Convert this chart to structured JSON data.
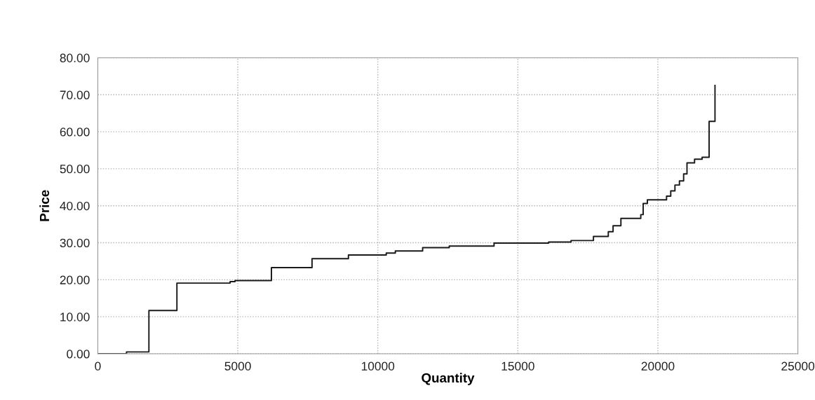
{
  "chart_data": {
    "type": "step",
    "xlabel": "Quantity",
    "ylabel": "Price",
    "x": [
      0,
      1025,
      1825,
      2825,
      4725,
      4900,
      6200,
      7650,
      8950,
      10300,
      10625,
      11600,
      12550,
      14150,
      16100,
      16900,
      17700,
      18230,
      18400,
      18680,
      19390,
      19475,
      19625,
      20310,
      20460,
      20610,
      20770,
      20920,
      21040,
      21310,
      21580,
      21830,
      22040
    ],
    "series": [
      {
        "color": "#1a1a1a",
        "values": [
          0,
          0.5,
          11.7,
          19.1,
          19.5,
          19.8,
          23.3,
          25.7,
          26.7,
          27.2,
          27.8,
          28.7,
          29.1,
          29.9,
          30.2,
          30.6,
          31.7,
          33.0,
          34.6,
          36.6,
          37.6,
          40.6,
          41.6,
          42.6,
          44.0,
          45.6,
          46.7,
          48.6,
          51.6,
          52.6,
          53.1,
          62.8,
          72.5
        ]
      }
    ],
    "xlim": [
      0,
      25000
    ],
    "xticks": [
      0,
      5000,
      10000,
      15000,
      20000,
      25000
    ],
    "ylim": [
      0,
      80
    ],
    "yticks": [
      {
        "value": 0,
        "label": "0.00"
      },
      {
        "value": 10,
        "label": "10.00"
      },
      {
        "value": 20,
        "label": "20.00"
      },
      {
        "value": 30,
        "label": "30.00"
      },
      {
        "value": 40,
        "label": "40.00"
      },
      {
        "value": 50,
        "label": "50.00"
      },
      {
        "value": 60,
        "label": "60.00"
      },
      {
        "value": 70,
        "label": "70.00"
      },
      {
        "value": 80,
        "label": "80.00"
      }
    ],
    "grid": true,
    "line_style": "solid"
  }
}
